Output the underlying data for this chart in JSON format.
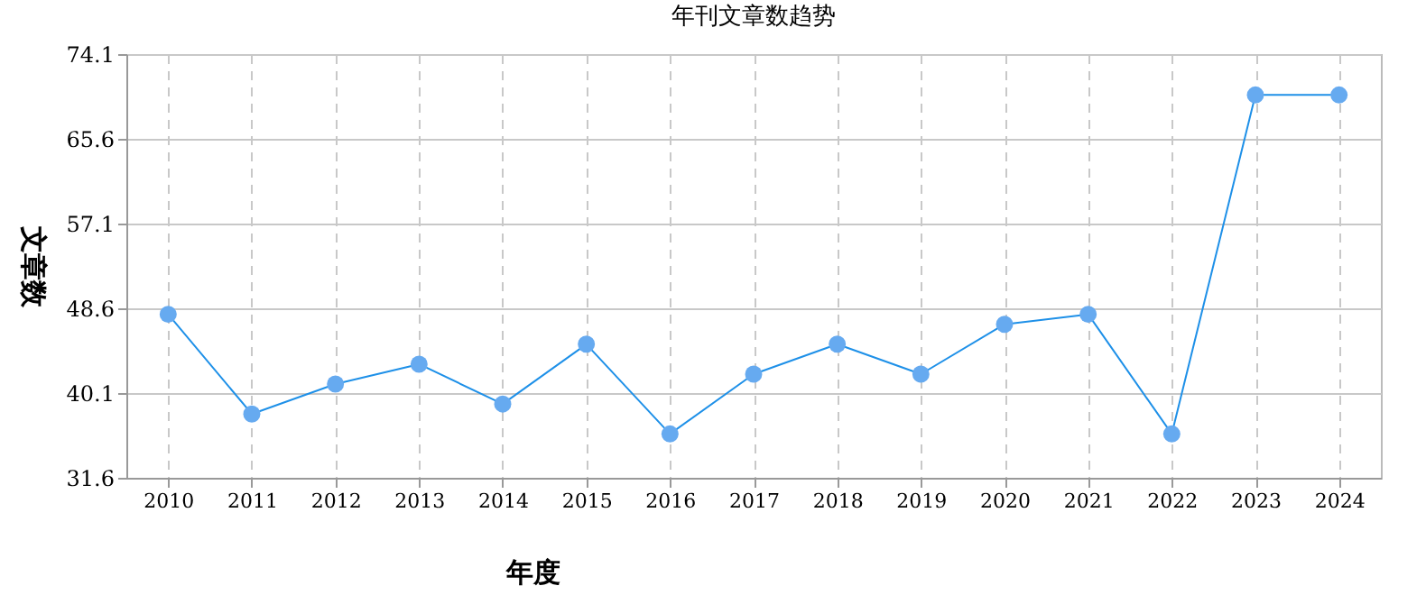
{
  "chart_data": {
    "type": "line",
    "title": "年刊文章数趋势",
    "xlabel": "年度",
    "ylabel": "文章数",
    "categories": [
      "2010",
      "2011",
      "2012",
      "2013",
      "2014",
      "2015",
      "2016",
      "2017",
      "2018",
      "2019",
      "2020",
      "2021",
      "2022",
      "2023",
      "2024"
    ],
    "series": [
      {
        "color": "#1e90e8",
        "values": [
          48,
          38,
          41,
          43,
          39,
          45,
          36,
          42,
          45,
          42,
          47,
          48,
          36,
          70,
          70
        ]
      }
    ],
    "ylim": [
      31.6,
      74.1
    ],
    "yticks": [
      31.6,
      40.1,
      48.6,
      57.1,
      65.6,
      74.1
    ],
    "grid": true,
    "marker": "circle",
    "line_style": "solid"
  }
}
